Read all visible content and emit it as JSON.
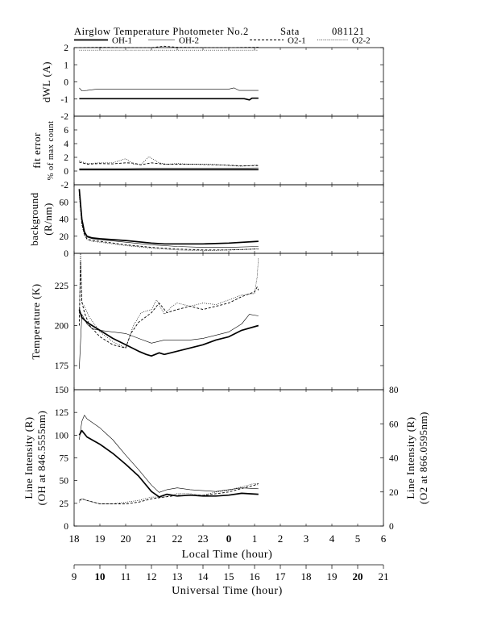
{
  "header": {
    "title": "Airglow Temperature Photometer No.2",
    "station": "Sata",
    "date": "081121"
  },
  "legend": [
    {
      "name": "OH-1",
      "style": "solid-thick",
      "color": "#000000"
    },
    {
      "name": "OH-2",
      "style": "solid-thin",
      "color": "#000000"
    },
    {
      "name": "O2-1",
      "style": "dashed",
      "color": "#000000"
    },
    {
      "name": "O2-2",
      "style": "dotted",
      "color": "#000000"
    }
  ],
  "chart_data": [
    {
      "type": "line",
      "ylabel": "dWL (A)",
      "ylim": [
        -2,
        2
      ],
      "yticks": [
        -2,
        -1,
        0,
        1,
        2
      ],
      "series": [
        {
          "name": "OH-1",
          "x": [
            9.2,
            10,
            11,
            12,
            13,
            14,
            15,
            15.6,
            15.8,
            15.9,
            16.15
          ],
          "y": [
            -0.98,
            -0.98,
            -0.98,
            -0.98,
            -0.98,
            -0.98,
            -0.98,
            -0.98,
            -1.05,
            -0.95,
            -0.95
          ]
        },
        {
          "name": "OH-2",
          "x": [
            9.2,
            9.3,
            9.5,
            9.8,
            10,
            11,
            12,
            13,
            14,
            15,
            15.2,
            15.4,
            15.5,
            16.15
          ],
          "y": [
            -0.35,
            -0.52,
            -0.5,
            -0.44,
            -0.42,
            -0.42,
            -0.42,
            -0.42,
            -0.42,
            -0.42,
            -0.35,
            -0.5,
            -0.5,
            -0.5
          ]
        },
        {
          "name": "O2-1",
          "x": [
            9.2,
            10,
            11,
            12,
            12.5,
            13,
            14,
            15,
            16.15
          ],
          "y": [
            2.0,
            2.02,
            2.0,
            2.0,
            2.08,
            2.02,
            2.0,
            2.0,
            2.02
          ]
        },
        {
          "name": "O2-2",
          "x": [
            9.2,
            10,
            11,
            12,
            13,
            14,
            15,
            16.15
          ],
          "y": [
            1.85,
            1.85,
            1.85,
            1.85,
            1.85,
            1.85,
            1.85,
            1.85
          ]
        }
      ]
    },
    {
      "type": "line",
      "ylabel": "fit error",
      "ylabel2": "% of max count",
      "ylim": [
        -2,
        8
      ],
      "yticks": [
        -2,
        0,
        2,
        4,
        6
      ],
      "series": [
        {
          "name": "OH-1",
          "x": [
            9.2,
            10,
            11,
            12,
            13,
            14,
            15,
            16.15
          ],
          "y": [
            0.2,
            0.2,
            0.2,
            0.2,
            0.2,
            0.2,
            0.2,
            0.2
          ]
        },
        {
          "name": "OH-2",
          "x": [
            9.2,
            10,
            11,
            12,
            13,
            14,
            15,
            16.15
          ],
          "y": [
            0.35,
            0.35,
            0.35,
            0.4,
            0.4,
            0.4,
            0.4,
            0.45
          ]
        },
        {
          "name": "O2-1",
          "x": [
            9.2,
            9.5,
            10,
            10.5,
            11,
            11.3,
            11.6,
            12,
            12.5,
            13,
            13.5,
            14,
            14.5,
            15,
            15.5,
            16.15
          ],
          "y": [
            1.3,
            1.0,
            1.1,
            1.05,
            1.2,
            1.15,
            0.9,
            1.2,
            1.0,
            1.0,
            1.0,
            0.95,
            0.9,
            0.85,
            0.75,
            0.8
          ]
        },
        {
          "name": "O2-2",
          "x": [
            9.2,
            9.5,
            10,
            10.5,
            11,
            11.3,
            11.6,
            11.9,
            12.3,
            12.6,
            13,
            13.5,
            14,
            14.5,
            15,
            15.5,
            16.15
          ],
          "y": [
            1.5,
            1.1,
            1.2,
            1.2,
            1.8,
            1.0,
            0.95,
            2.1,
            1.2,
            1.0,
            1.1,
            1.0,
            1.0,
            0.95,
            0.8,
            0.7,
            0.9
          ]
        }
      ]
    },
    {
      "type": "line",
      "ylabel": "background",
      "ylabel2": "(R/nm)",
      "ylim": [
        0,
        80
      ],
      "yticks": [
        0,
        20,
        40,
        60
      ],
      "series": [
        {
          "name": "OH-1",
          "x": [
            9.2,
            9.3,
            9.4,
            9.5,
            9.7,
            10,
            11,
            12,
            12.5,
            13,
            14,
            15,
            16.15
          ],
          "y": [
            75,
            40,
            25,
            20,
            18,
            17,
            15,
            12,
            11,
            11,
            11,
            12,
            14
          ]
        },
        {
          "name": "OH-2",
          "x": [
            9.2,
            9.3,
            9.4,
            9.5,
            9.7,
            10,
            11,
            12,
            13,
            14,
            15,
            16.15
          ],
          "y": [
            72,
            38,
            24,
            19,
            17,
            16,
            13,
            10,
            8,
            7,
            7,
            8
          ]
        },
        {
          "name": "O2-1",
          "x": [
            9.2,
            9.3,
            9.4,
            9.5,
            9.7,
            10,
            11,
            12,
            13,
            14,
            15,
            16,
            16.15
          ],
          "y": [
            70,
            35,
            22,
            17,
            15,
            14,
            10,
            7,
            5,
            4,
            4,
            5,
            5
          ]
        },
        {
          "name": "O2-2",
          "x": [
            9.2,
            9.3,
            9.4,
            9.5,
            9.7,
            10,
            11,
            12,
            13,
            14,
            15,
            16,
            16.15
          ],
          "y": [
            68,
            33,
            21,
            16,
            14,
            13,
            9,
            6,
            4,
            3,
            4,
            5,
            5
          ]
        }
      ]
    },
    {
      "type": "line",
      "ylabel": "Temperature (K)",
      "ylim": [
        160,
        245
      ],
      "yticks": [
        175,
        200,
        225
      ],
      "series": [
        {
          "name": "OH-1",
          "x": [
            9.2,
            9.3,
            9.5,
            9.8,
            10,
            10.5,
            11,
            11.5,
            11.8,
            12,
            12.3,
            12.5,
            13,
            13.5,
            14,
            14.5,
            15,
            15.5,
            16.15
          ],
          "y": [
            210,
            205,
            202,
            199,
            197,
            192,
            188,
            184,
            182,
            181,
            183,
            182,
            184,
            186,
            188,
            191,
            193,
            197,
            200
          ]
        },
        {
          "name": "OH-2",
          "x": [
            9.2,
            9.3,
            9.5,
            9.7,
            10,
            10.5,
            11,
            11.5,
            12,
            12.5,
            13,
            13.5,
            14,
            14.5,
            15,
            15.5,
            15.8,
            16.15
          ],
          "y": [
            173,
            207,
            201,
            198,
            197,
            196,
            195,
            192,
            189,
            191,
            191,
            191,
            192,
            194,
            196,
            201,
            207,
            206
          ]
        },
        {
          "name": "O2-1",
          "x": [
            9.2,
            9.25,
            9.3,
            9.4,
            9.6,
            10,
            10.5,
            11,
            11.2,
            11.5,
            12,
            12.3,
            12.6,
            13,
            13.5,
            14,
            14.5,
            15,
            15.5,
            16,
            16.1,
            16.15
          ],
          "y": [
            200,
            240,
            215,
            208,
            200,
            193,
            188,
            186,
            195,
            202,
            208,
            214,
            208,
            210,
            212,
            210,
            212,
            214,
            218,
            221,
            224,
            222
          ]
        },
        {
          "name": "O2-2",
          "x": [
            9.2,
            9.25,
            9.3,
            9.4,
            9.6,
            10,
            10.5,
            11,
            11.3,
            11.6,
            12,
            12.2,
            12.5,
            12.8,
            13,
            13.5,
            14,
            14.5,
            15,
            15.5,
            16,
            16.1,
            16.15
          ],
          "y": [
            205,
            245,
            214,
            212,
            205,
            196,
            190,
            186,
            200,
            208,
            210,
            216,
            207,
            212,
            214,
            212,
            214,
            213,
            216,
            219,
            220,
            230,
            242
          ]
        }
      ]
    },
    {
      "type": "line",
      "ylabel": "Line Intensity (R)",
      "ylabel2": "(OH at 846.5555nm)",
      "ylim": [
        0,
        150
      ],
      "yticks": [
        0,
        25,
        50,
        75,
        100,
        125,
        150
      ],
      "y2label": "Line Intensity (R)",
      "y2label2": "(O2 at 866.0595nm)",
      "y2lim": [
        0,
        80
      ],
      "y2ticks": [
        0,
        20,
        40,
        60,
        80
      ],
      "series": [
        {
          "name": "OH-1",
          "axis": "left",
          "x": [
            9.2,
            9.3,
            9.5,
            10,
            10.5,
            11,
            11.5,
            12,
            12.3,
            12.6,
            13,
            13.5,
            14,
            14.5,
            15,
            15.5,
            16.15
          ],
          "y": [
            100,
            105,
            98,
            90,
            80,
            68,
            55,
            38,
            32,
            35,
            33,
            34,
            33,
            33,
            34,
            36,
            35
          ]
        },
        {
          "name": "OH-2",
          "axis": "left",
          "x": [
            9.2,
            9.3,
            9.4,
            9.5,
            10,
            10.5,
            11,
            11.5,
            12,
            12.3,
            12.6,
            13,
            13.5,
            14,
            14.5,
            15,
            15.5,
            16.15
          ],
          "y": [
            95,
            115,
            122,
            118,
            108,
            95,
            78,
            62,
            45,
            37,
            40,
            42,
            40,
            39,
            38,
            40,
            42,
            41
          ]
        },
        {
          "name": "O2-1",
          "axis": "right",
          "x": [
            9.2,
            9.3,
            9.5,
            10,
            10.5,
            11,
            11.5,
            12,
            12.5,
            13,
            13.5,
            14,
            14.5,
            15,
            15.5,
            16,
            16.15
          ],
          "y": [
            15,
            16,
            15,
            13,
            13,
            13,
            14,
            16,
            17,
            18,
            18,
            18,
            19,
            20,
            22,
            24,
            25
          ]
        },
        {
          "name": "O2-2",
          "axis": "right",
          "x": [
            9.2,
            9.3,
            9.5,
            10,
            10.5,
            11,
            11.5,
            12,
            12.5,
            13,
            13.5,
            14,
            14.5,
            15,
            15.5,
            16,
            16.15
          ],
          "y": [
            14,
            16,
            15,
            13,
            13,
            14,
            15,
            17,
            17,
            19,
            19,
            18,
            20,
            21,
            23,
            25,
            24
          ]
        }
      ]
    }
  ],
  "axes": {
    "utc_xlim": [
      9,
      21
    ],
    "local_ticks": [
      "18",
      "19",
      "20",
      "21",
      "22",
      "23",
      "0",
      "1",
      "2",
      "3",
      "4",
      "5",
      "6"
    ],
    "local_label": "Local Time (hour)",
    "utc_ticks": [
      "9",
      "10",
      "11",
      "12",
      "13",
      "14",
      "15",
      "16",
      "17",
      "18",
      "19",
      "20",
      "21"
    ],
    "utc_label": "Universal Time (hour)"
  }
}
